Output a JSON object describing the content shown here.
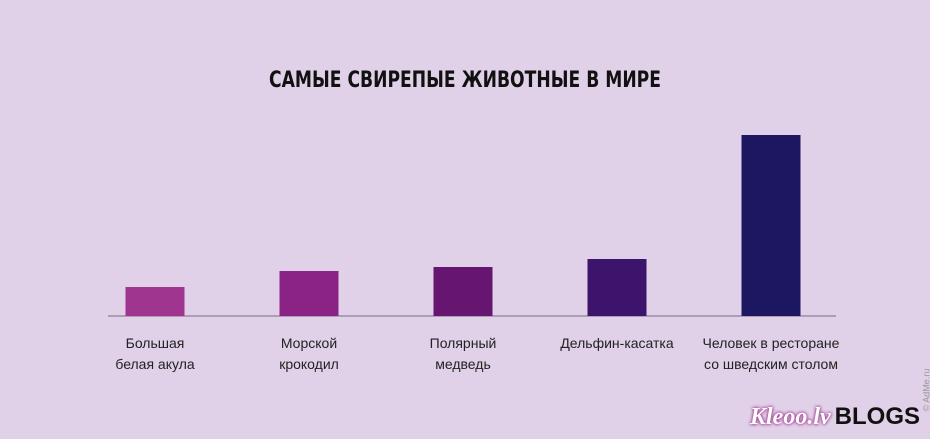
{
  "chart_data": {
    "type": "bar",
    "title": "САМЫЕ СВИРЕПЫЕ ЖИВОТНЫЕ В МИРЕ",
    "categories": [
      "Большая\nбелая акула",
      "Морской\nкрокодил",
      "Полярный\nмедведь",
      "Дельфин-касатка",
      "Человек в ресторане\nсо шведским столом"
    ],
    "values": [
      29,
      45,
      49,
      57,
      181
    ],
    "colors": [
      "#a0358f",
      "#8a2385",
      "#661670",
      "#3c146c",
      "#1d1660"
    ]
  },
  "watermark": "© AdMe.ru",
  "logo": {
    "name": "Kleoo.lv",
    "suffix": "BLOGS"
  }
}
